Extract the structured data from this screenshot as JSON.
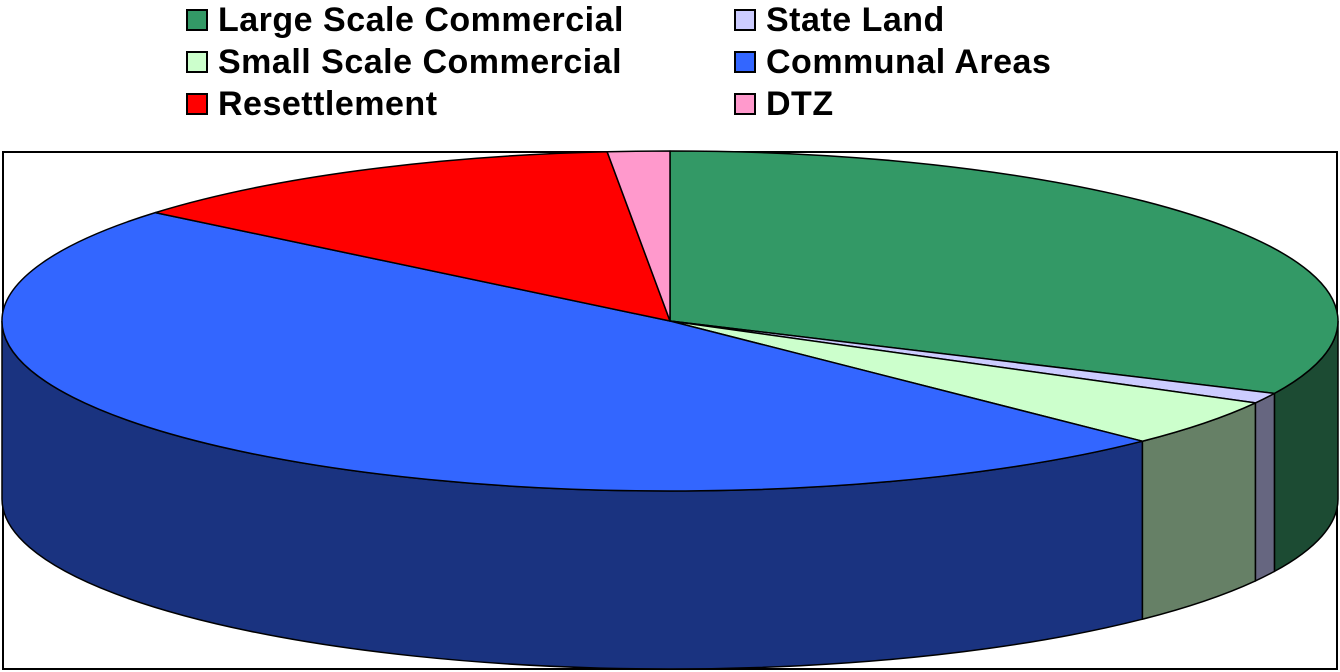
{
  "chart_data": {
    "type": "pie",
    "style": "3d",
    "legend_position": "top",
    "slices": [
      {
        "label": "Large Scale Commercial",
        "value": 32.0,
        "color": "#339966",
        "side": "#1c4b33"
      },
      {
        "label": "State Land",
        "value": 1.0,
        "color": "#ccccff",
        "side": "#666680"
      },
      {
        "label": "Small Scale Commercial",
        "value": 4.5,
        "color": "#ccffcc",
        "side": "#668066"
      },
      {
        "label": "Communal Areas",
        "value": 48.5,
        "color": "#3366ff",
        "side": "#1a3380"
      },
      {
        "label": "Resettlement",
        "value": 12.5,
        "color": "#ff0000",
        "side": "#800000"
      },
      {
        "label": "DTZ",
        "value": 1.5,
        "color": "#ff99cc",
        "side": "#804d66"
      }
    ]
  },
  "legend": {
    "items": [
      {
        "label": "Large Scale Commercial",
        "color": "#339966"
      },
      {
        "label": "State Land",
        "color": "#ccccff"
      },
      {
        "label": "Small Scale Commercial",
        "color": "#ccffcc"
      },
      {
        "label": "Communal Areas",
        "color": "#3366ff"
      },
      {
        "label": "Resettlement",
        "color": "#ff0000"
      },
      {
        "label": "DTZ",
        "color": "#ff99cc"
      }
    ]
  }
}
